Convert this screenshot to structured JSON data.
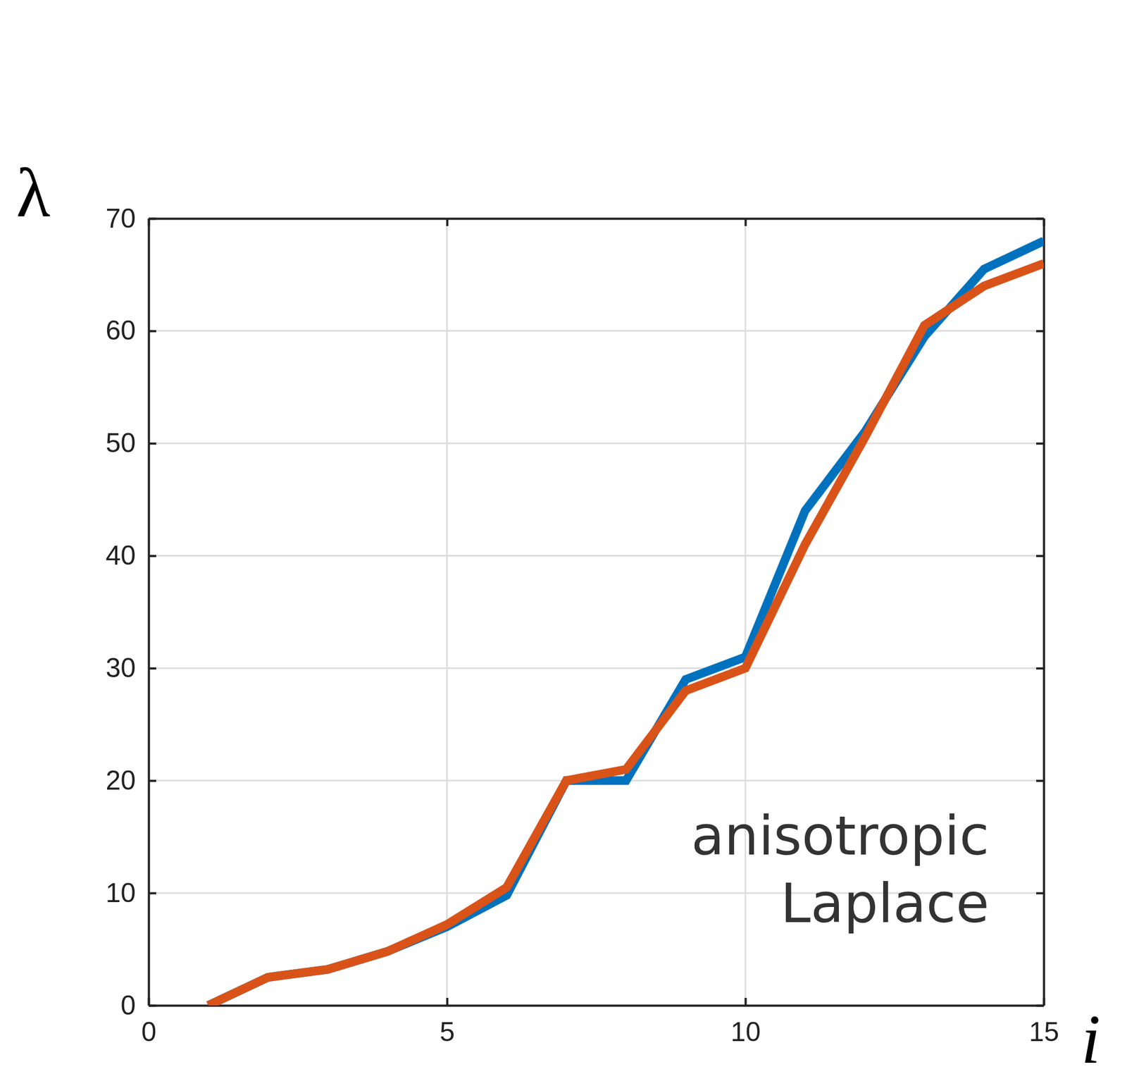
{
  "chart_data": {
    "type": "line",
    "x_label": "i",
    "y_label": "λ",
    "annotation": "anisotropic Laplace",
    "x": [
      1,
      2,
      3,
      4,
      5,
      6,
      7,
      8,
      9,
      10,
      11,
      12,
      13,
      14,
      15
    ],
    "series": [
      {
        "color": "#0072bd",
        "values": [
          0,
          2.5,
          3.2,
          4.8,
          7,
          9.8,
          20,
          20,
          29,
          31,
          44,
          51,
          59.5,
          65.5,
          68
        ]
      },
      {
        "color": "#d95319",
        "values": [
          0,
          2.5,
          3.2,
          4.8,
          7.2,
          10.5,
          20,
          21,
          28,
          30,
          41,
          50.5,
          60.5,
          64,
          66
        ]
      }
    ],
    "xlim": [
      0,
      15
    ],
    "ylim": [
      0,
      70
    ],
    "xticks": [
      0,
      5,
      10,
      15
    ],
    "yticks": [
      0,
      10,
      20,
      30,
      40,
      50,
      60,
      70
    ],
    "grid": true
  }
}
